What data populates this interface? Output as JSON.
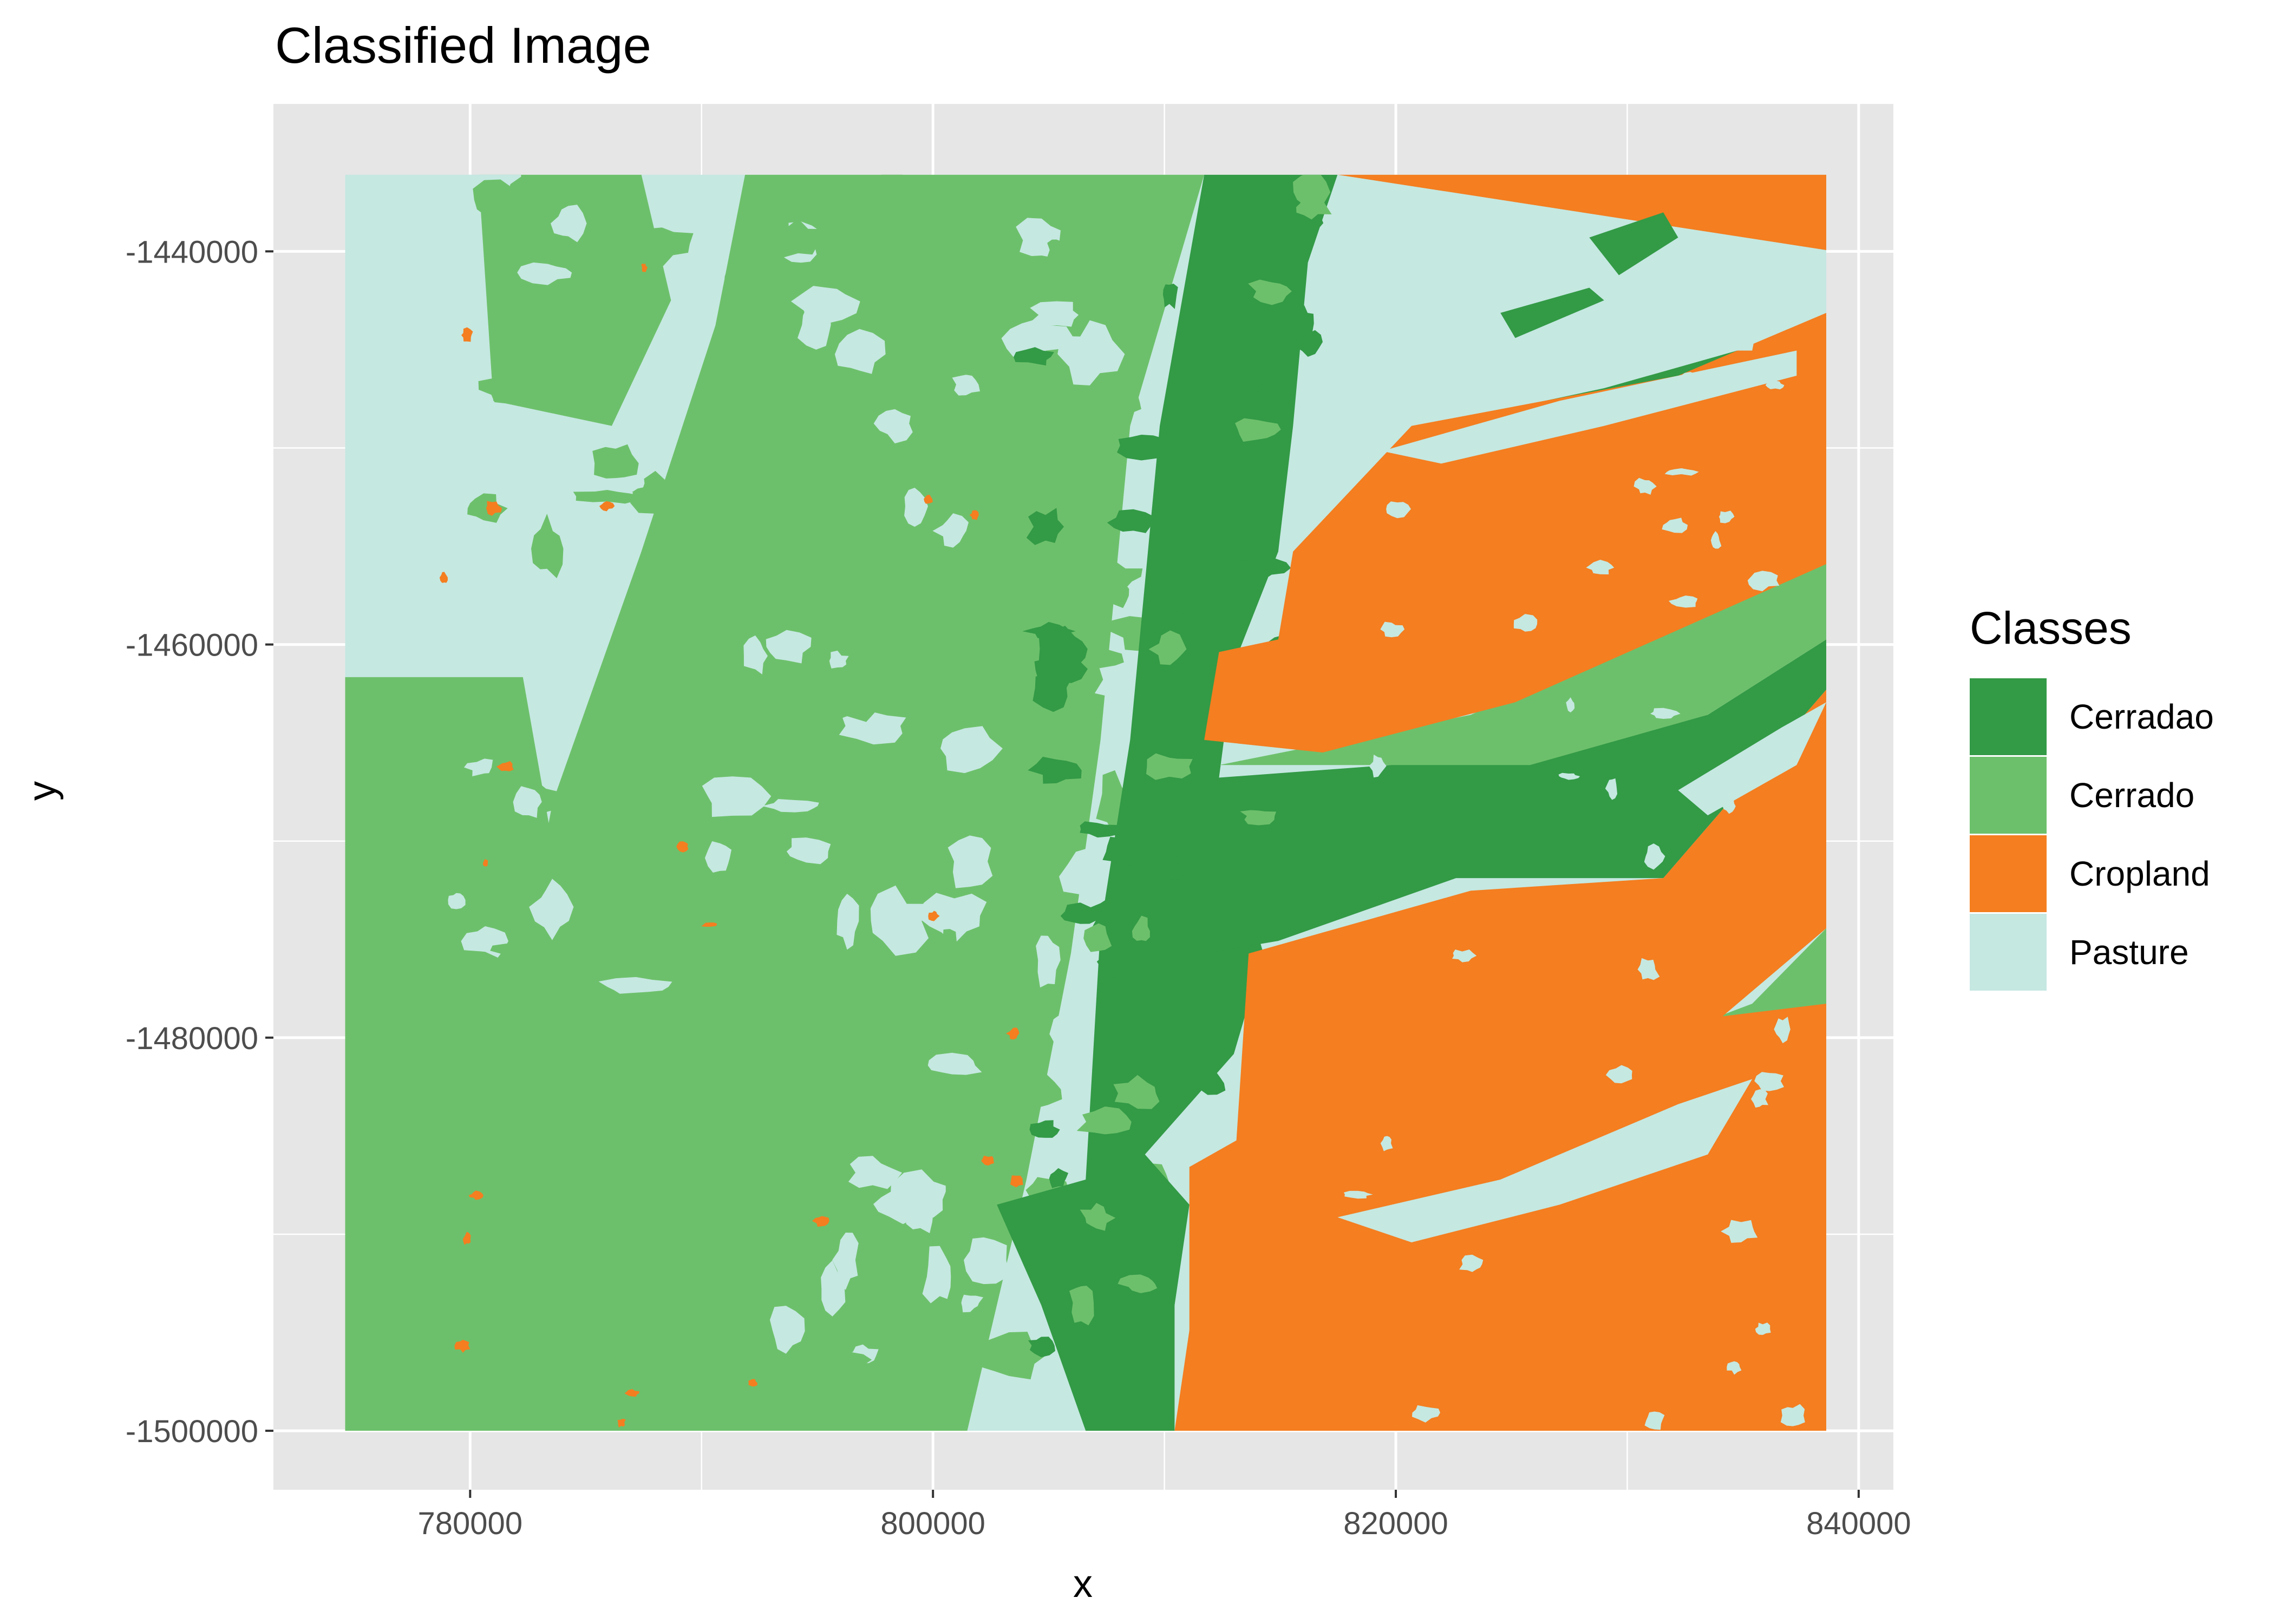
{
  "title": "Classified Image",
  "axes": {
    "x": {
      "label": "x",
      "ticks": [
        "780000",
        "800000",
        "820000",
        "840000"
      ],
      "tick_values": [
        780000,
        800000,
        820000,
        840000
      ],
      "range": [
        771500,
        841500
      ]
    },
    "y": {
      "label": "y",
      "ticks": [
        "-1440000",
        "-1460000",
        "-1480000",
        "-1500000"
      ],
      "tick_values": [
        -1440000,
        -1460000,
        -1480000,
        -1500000
      ],
      "range": [
        -1503000,
        -1432500
      ]
    }
  },
  "extent": {
    "xmin": 774600,
    "xmax": 838600,
    "ymin": -1500000,
    "ymax": -1436100
  },
  "legend": {
    "title": "Classes",
    "items": [
      {
        "label": "Cerradao",
        "color": "#339A46"
      },
      {
        "label": "Cerrado",
        "color": "#6DC06B"
      },
      {
        "label": "Cropland",
        "color": "#F47E20"
      },
      {
        "label": "Pasture",
        "color": "#C5E8E1"
      }
    ]
  },
  "colors": {
    "panel": "#E6E6E6",
    "grid": "#FFFFFF",
    "tick": "#333333"
  }
}
